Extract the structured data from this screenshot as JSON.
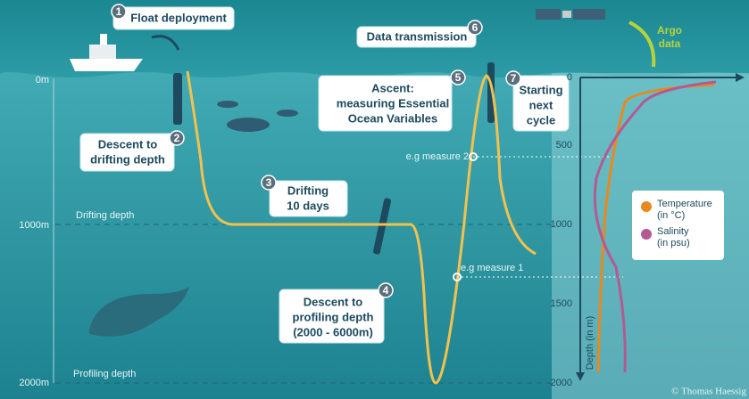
{
  "steps": [
    {
      "number": "1",
      "lines": [
        "Float deployment"
      ]
    },
    {
      "number": "2",
      "lines": [
        "Descent to",
        "drifting depth"
      ]
    },
    {
      "number": "3",
      "lines": [
        "Drifting",
        "10 days"
      ]
    },
    {
      "number": "4",
      "lines": [
        "Descent to",
        "profiling depth",
        "(2000 - 6000m)"
      ]
    },
    {
      "number": "5",
      "lines": [
        "Ascent:",
        "measuring Essential",
        "Ocean Variables"
      ]
    },
    {
      "number": "6",
      "lines": [
        "Data transmission"
      ]
    },
    {
      "number": "7",
      "lines": [
        "Starting",
        "next",
        "cycle"
      ]
    }
  ],
  "depth_scale": [
    "0m",
    "1000m",
    "2000m"
  ],
  "depth_levels": [
    "Drifting depth",
    "Profiling depth"
  ],
  "measures": [
    "e.g measure 2",
    "e.g measure 1"
  ],
  "argo_data": [
    "Argo",
    "data"
  ],
  "profile_chart": {
    "y_label": "Depth (in m)",
    "ticks": [
      "0",
      "500",
      "1000",
      "1500",
      "2000"
    ],
    "legend": [
      {
        "lines": [
          "Temperature",
          "(in °C)"
        ],
        "color": "#e8891e"
      },
      {
        "lines": [
          "Salinity",
          "(in psu)"
        ],
        "color": "#b35a93"
      }
    ]
  },
  "credit": "© Thomas Haessig"
}
